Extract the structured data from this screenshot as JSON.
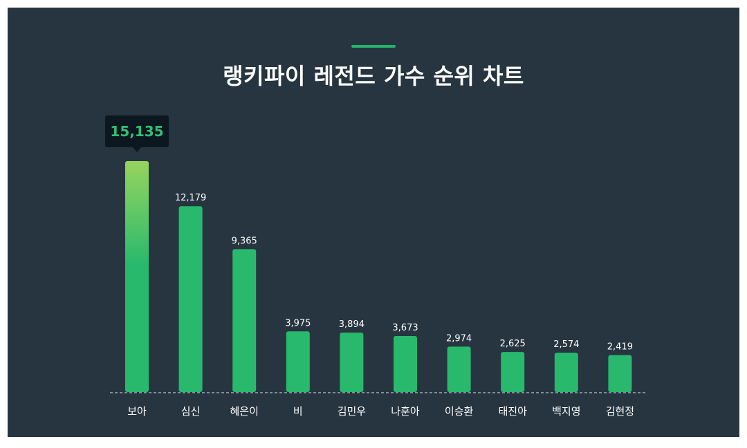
{
  "title": "랭키파이 레전드 가수 순위 차트",
  "colors": {
    "background": "#263540",
    "bar": "#28b96d",
    "bar_top_highlight": "#97d45e",
    "tooltip_bg": "#0c1720",
    "tooltip_text": "#2fc074",
    "text": "#ffffff",
    "baseline": "#b9c3c9"
  },
  "chart_data": {
    "type": "bar",
    "title": "랭키파이 레전드 가수 순위 차트",
    "categories": [
      "보아",
      "심신",
      "혜은이",
      "비",
      "김민우",
      "나훈아",
      "이승환",
      "태진아",
      "백지영",
      "김현정"
    ],
    "values": [
      15135,
      12179,
      9365,
      3975,
      3894,
      3673,
      2974,
      2625,
      2574,
      2419
    ],
    "value_labels": [
      "15,135",
      "12,179",
      "9,365",
      "3,975",
      "3,894",
      "3,673",
      "2,974",
      "2,625",
      "2,574",
      "2,419"
    ],
    "highlighted_index": 0,
    "ylim": [
      0,
      15135
    ],
    "grid": false,
    "legend": "none"
  }
}
